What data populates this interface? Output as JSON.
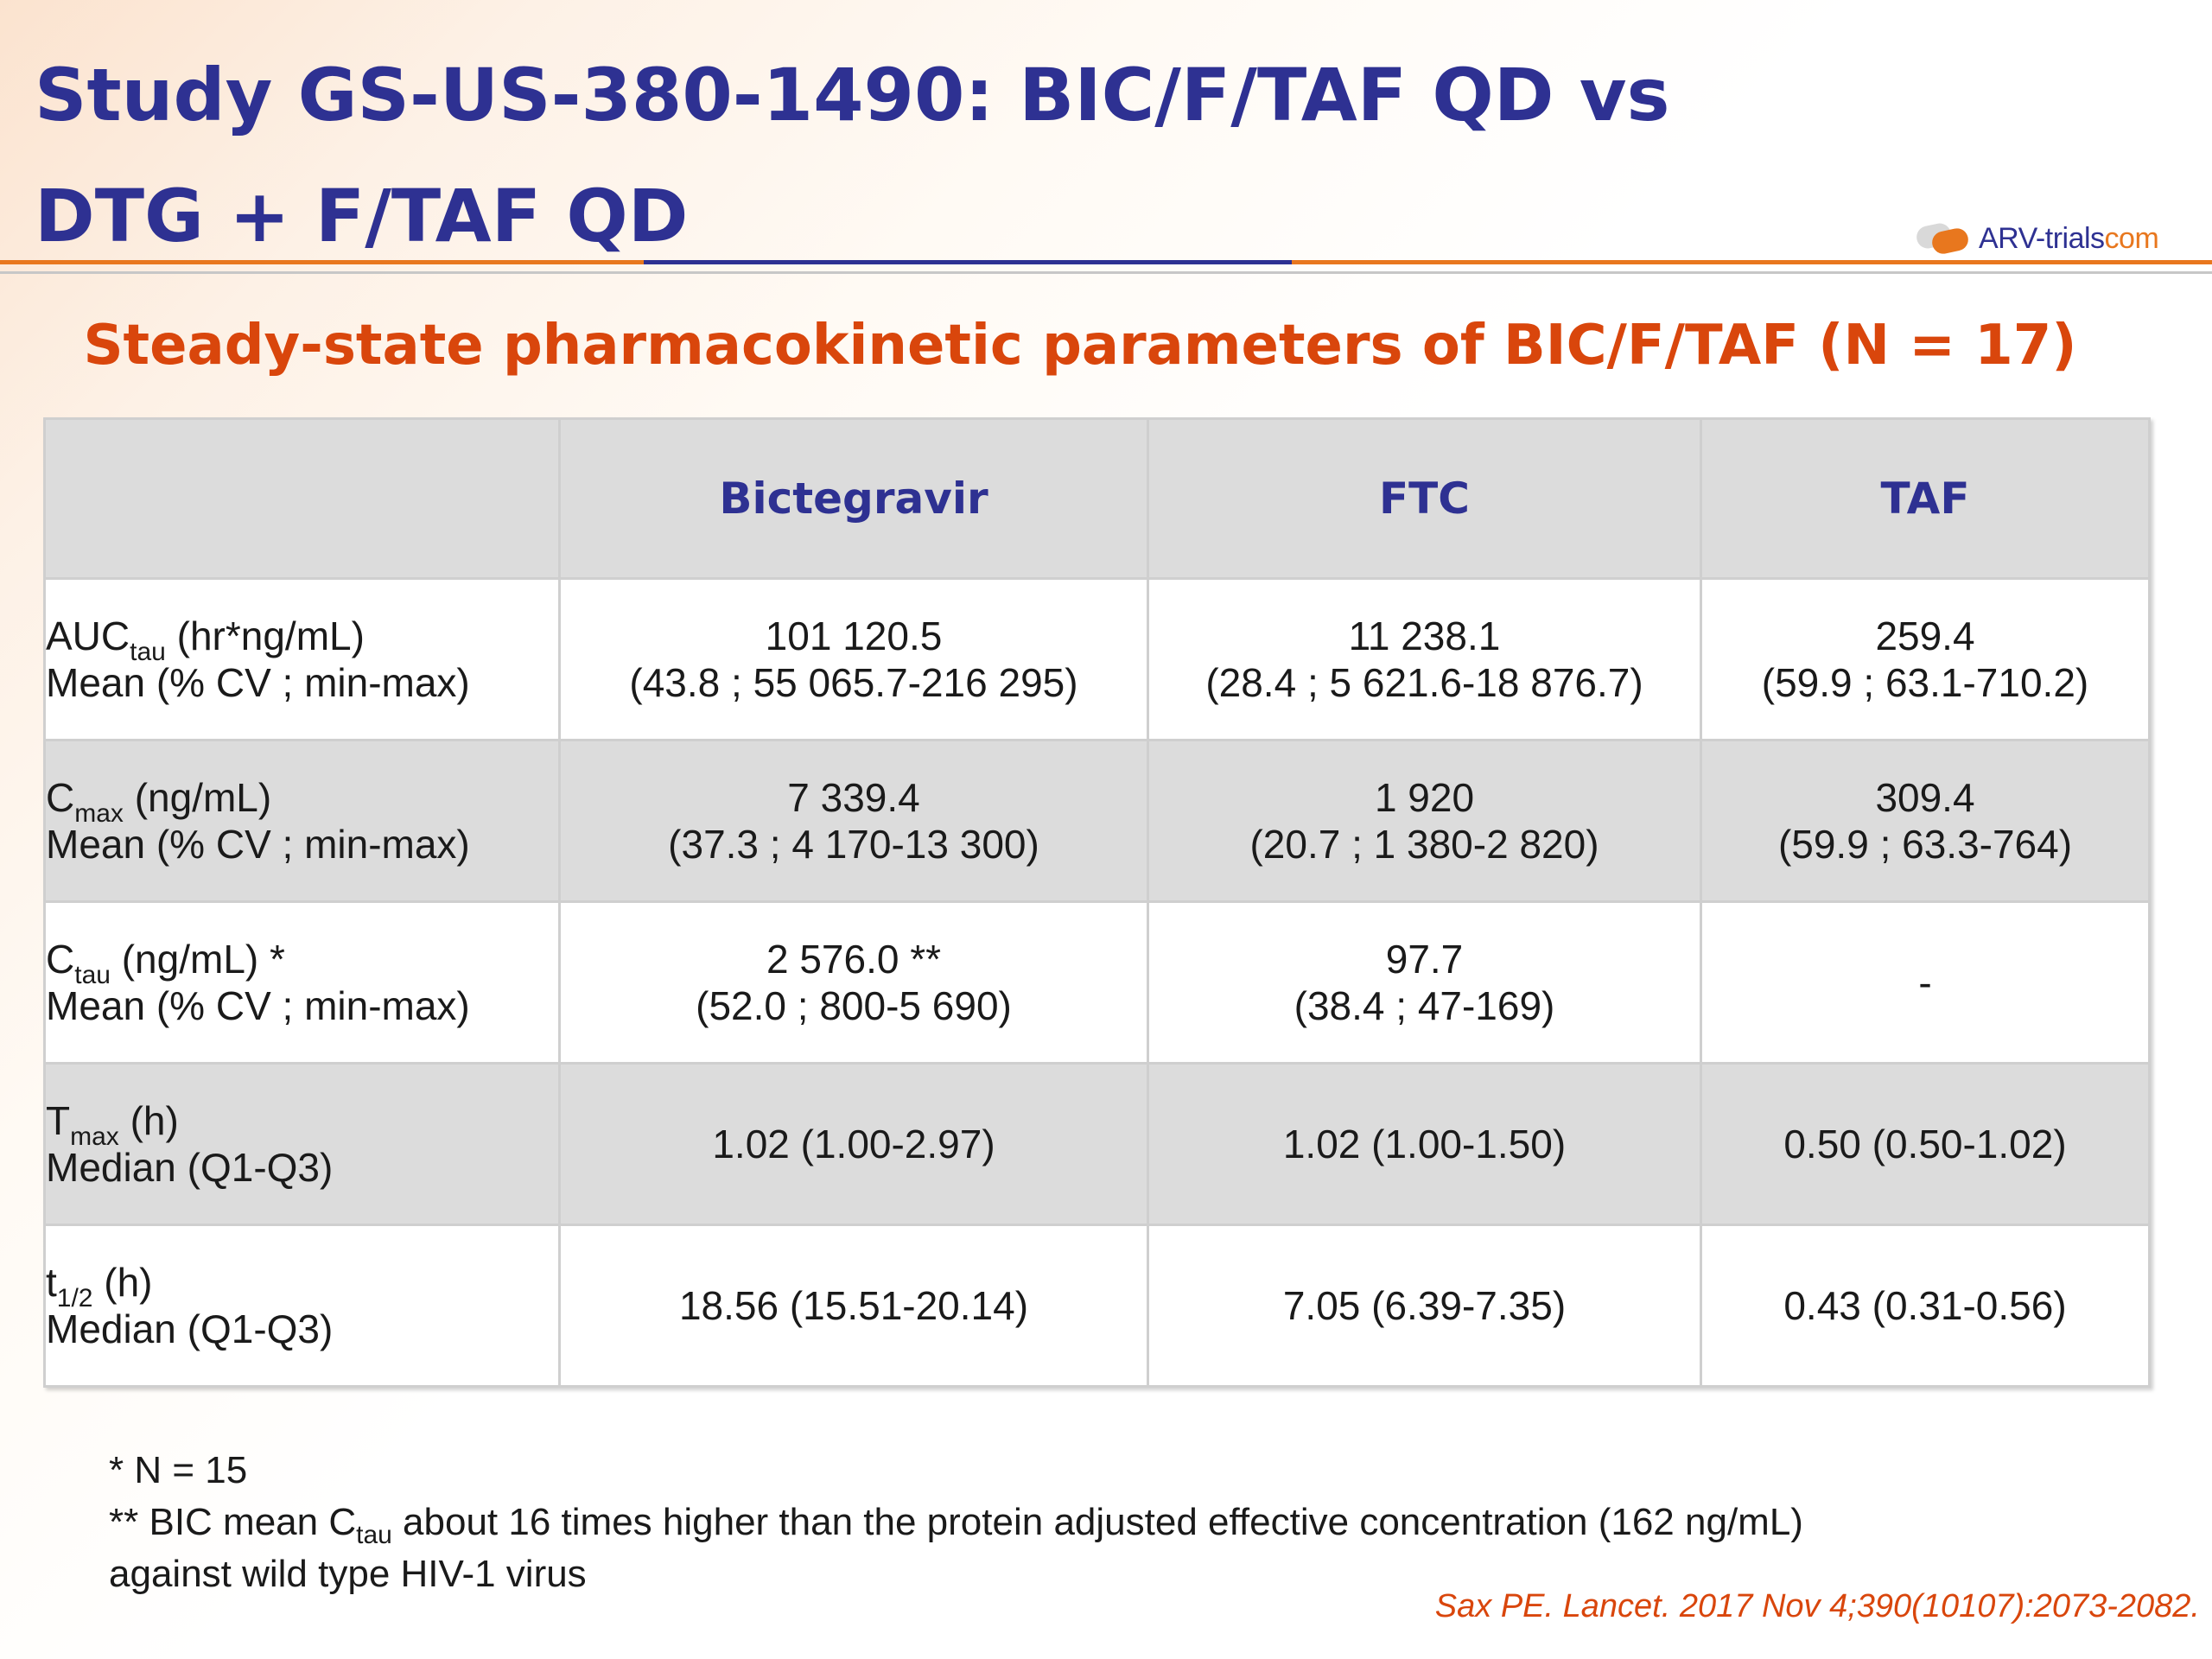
{
  "slide": {
    "title": "Study GS-US-380-1490: BIC/F/TAF QD vs DTG + F/TAF QD",
    "logo": {
      "main": "ARV-trials",
      "suffix": "com"
    },
    "subtitle": "Steady-state pharmacokinetic parameters of BIC/F/TAF (N = 17)"
  },
  "table": {
    "headers": [
      "",
      "Bictegravir",
      "FTC",
      "TAF"
    ],
    "rows": [
      {
        "label_main": "AUC",
        "label_sub": "tau",
        "label_rest": " (hr*ng/mL)",
        "label_line2": "Mean (% CV ; min-max)",
        "cells": [
          [
            "101 120.5",
            "(43.8 ; 55 065.7-216 295)"
          ],
          [
            "11 238.1",
            "(28.4 ; 5 621.6-18 876.7)"
          ],
          [
            "259.4",
            "(59.9 ; 63.1-710.2)"
          ]
        ]
      },
      {
        "label_main": "C",
        "label_sub": "max",
        "label_rest": " (ng/mL)",
        "label_line2": "Mean (% CV ; min-max)",
        "cells": [
          [
            "7 339.4",
            "(37.3 ; 4 170-13 300)"
          ],
          [
            "1 920",
            "(20.7 ; 1 380-2 820)"
          ],
          [
            "309.4",
            "(59.9 ; 63.3-764)"
          ]
        ]
      },
      {
        "label_main": "C",
        "label_sub": "tau",
        "label_rest": " (ng/mL) *",
        "label_line2": "Mean (% CV ; min-max)",
        "cells": [
          [
            "2 576.0 **",
            "(52.0 ; 800-5 690)"
          ],
          [
            "97.7",
            "(38.4 ; 47-169)"
          ],
          [
            "-",
            ""
          ]
        ]
      },
      {
        "label_main": "T",
        "label_sub": "max",
        "label_rest": " (h)",
        "label_line2": "Median (Q1-Q3)",
        "cells": [
          [
            "1.02 (1.00-2.97)",
            ""
          ],
          [
            "1.02 (1.00-1.50)",
            ""
          ],
          [
            "0.50 (0.50-1.02)",
            ""
          ]
        ]
      },
      {
        "label_main": "t",
        "label_sub": "1/2",
        "label_rest": " (h)",
        "label_line2": "Median (Q1-Q3)",
        "cells": [
          [
            "18.56 (15.51-20.14)",
            ""
          ],
          [
            "7.05 (6.39-7.35)",
            ""
          ],
          [
            "0.43 (0.31-0.56)",
            ""
          ]
        ]
      }
    ]
  },
  "footnotes": {
    "note1": "* N = 15",
    "note2_pre": "** BIC mean C",
    "note2_sub": "tau",
    "note2_post": " about 16 times higher than the protein adjusted effective concentration (162 ng/mL)",
    "note2_line2": "against wild type HIV-1 virus"
  },
  "citation": "Sax PE. Lancet. 2017 Nov 4;390(10107):2073-2082."
}
